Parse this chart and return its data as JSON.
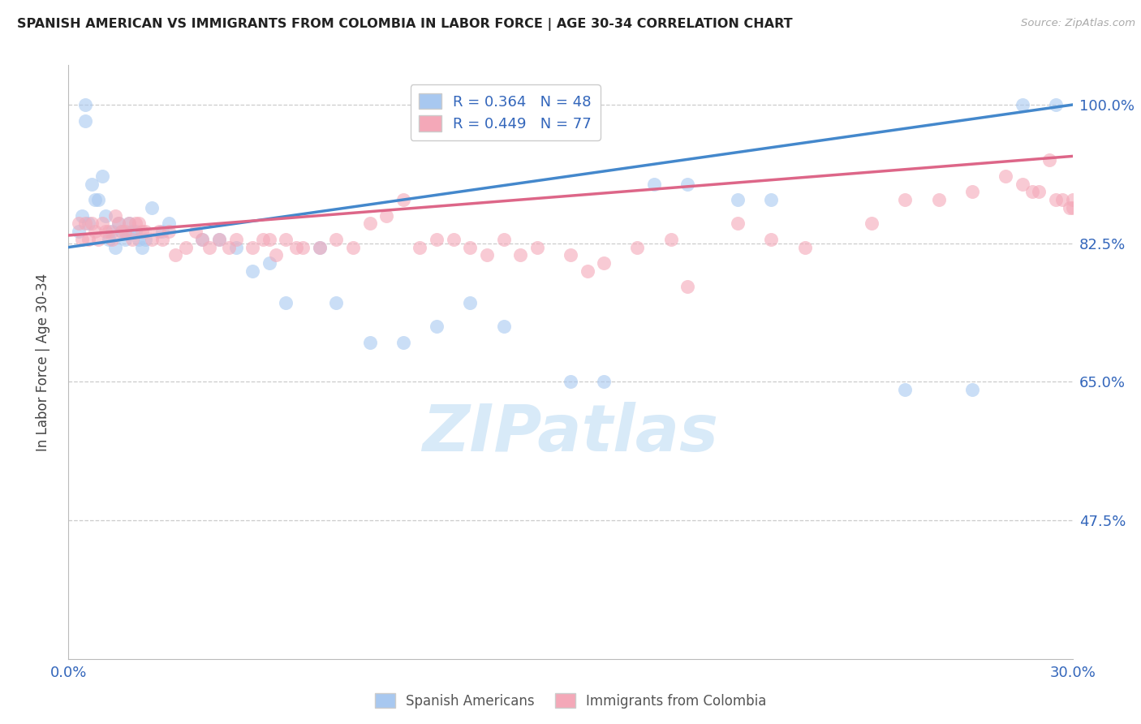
{
  "title": "SPANISH AMERICAN VS IMMIGRANTS FROM COLOMBIA IN LABOR FORCE | AGE 30-34 CORRELATION CHART",
  "source": "Source: ZipAtlas.com",
  "ylabel": "In Labor Force | Age 30-34",
  "xlim": [
    0.0,
    0.3
  ],
  "ylim": [
    0.3,
    1.05
  ],
  "blue_R": 0.364,
  "blue_N": 48,
  "pink_R": 0.449,
  "pink_N": 77,
  "blue_color": "#A8C8F0",
  "pink_color": "#F4A8B8",
  "blue_line_color": "#4488CC",
  "pink_line_color": "#DD6688",
  "legend_color": "#3366BB",
  "grid_color": "#CCCCCC",
  "bg_color": "#FFFFFF",
  "watermark_color": "#D8EAF8",
  "blue_label": "Spanish Americans",
  "pink_label": "Immigrants from Colombia",
  "blue_line_x0": 0.0,
  "blue_line_y0": 0.82,
  "blue_line_x1": 0.3,
  "blue_line_y1": 1.0,
  "pink_line_x0": 0.0,
  "pink_line_y0": 0.835,
  "pink_line_x1": 0.3,
  "pink_line_y1": 0.935,
  "blue_x": [
    0.003,
    0.004,
    0.005,
    0.005,
    0.006,
    0.007,
    0.008,
    0.009,
    0.01,
    0.011,
    0.012,
    0.013,
    0.014,
    0.015,
    0.016,
    0.017,
    0.018,
    0.019,
    0.02,
    0.021,
    0.022,
    0.023,
    0.025,
    0.028,
    0.03,
    0.04,
    0.045,
    0.05,
    0.055,
    0.06,
    0.065,
    0.075,
    0.08,
    0.09,
    0.1,
    0.11,
    0.12,
    0.13,
    0.15,
    0.16,
    0.175,
    0.185,
    0.2,
    0.21,
    0.25,
    0.27,
    0.285,
    0.295
  ],
  "blue_y": [
    0.84,
    0.86,
    1.0,
    0.98,
    0.85,
    0.9,
    0.88,
    0.88,
    0.91,
    0.86,
    0.83,
    0.84,
    0.82,
    0.85,
    0.84,
    0.83,
    0.85,
    0.84,
    0.84,
    0.83,
    0.82,
    0.83,
    0.87,
    0.84,
    0.85,
    0.83,
    0.83,
    0.82,
    0.79,
    0.8,
    0.75,
    0.82,
    0.75,
    0.7,
    0.7,
    0.72,
    0.75,
    0.72,
    0.65,
    0.65,
    0.9,
    0.9,
    0.88,
    0.88,
    0.64,
    0.64,
    1.0,
    1.0
  ],
  "pink_x": [
    0.003,
    0.004,
    0.005,
    0.006,
    0.007,
    0.008,
    0.009,
    0.01,
    0.011,
    0.012,
    0.013,
    0.014,
    0.015,
    0.016,
    0.017,
    0.018,
    0.019,
    0.02,
    0.021,
    0.022,
    0.023,
    0.025,
    0.027,
    0.028,
    0.03,
    0.032,
    0.035,
    0.038,
    0.04,
    0.042,
    0.045,
    0.048,
    0.05,
    0.055,
    0.058,
    0.06,
    0.062,
    0.065,
    0.068,
    0.07,
    0.075,
    0.08,
    0.085,
    0.09,
    0.095,
    0.1,
    0.105,
    0.11,
    0.115,
    0.12,
    0.125,
    0.13,
    0.135,
    0.14,
    0.15,
    0.155,
    0.16,
    0.17,
    0.18,
    0.185,
    0.2,
    0.21,
    0.22,
    0.24,
    0.25,
    0.26,
    0.27,
    0.28,
    0.285,
    0.288,
    0.29,
    0.293,
    0.295,
    0.297,
    0.299,
    0.3,
    0.3
  ],
  "pink_y": [
    0.85,
    0.83,
    0.85,
    0.83,
    0.85,
    0.84,
    0.83,
    0.85,
    0.84,
    0.84,
    0.83,
    0.86,
    0.85,
    0.84,
    0.84,
    0.85,
    0.83,
    0.85,
    0.85,
    0.84,
    0.84,
    0.83,
    0.84,
    0.83,
    0.84,
    0.81,
    0.82,
    0.84,
    0.83,
    0.82,
    0.83,
    0.82,
    0.83,
    0.82,
    0.83,
    0.83,
    0.81,
    0.83,
    0.82,
    0.82,
    0.82,
    0.83,
    0.82,
    0.85,
    0.86,
    0.88,
    0.82,
    0.83,
    0.83,
    0.82,
    0.81,
    0.83,
    0.81,
    0.82,
    0.81,
    0.79,
    0.8,
    0.82,
    0.83,
    0.77,
    0.85,
    0.83,
    0.82,
    0.85,
    0.88,
    0.88,
    0.89,
    0.91,
    0.9,
    0.89,
    0.89,
    0.93,
    0.88,
    0.88,
    0.87,
    0.88,
    0.87
  ]
}
